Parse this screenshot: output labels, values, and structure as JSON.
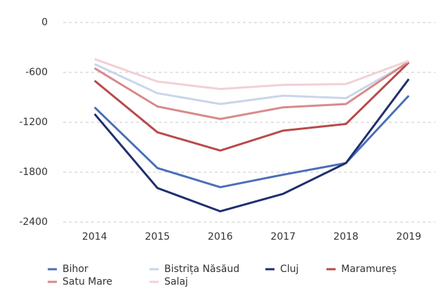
{
  "chart_data": {
    "type": "line",
    "categories": [
      "2014",
      "2015",
      "2016",
      "2017",
      "2018",
      "2019"
    ],
    "series": [
      {
        "name": "Bihor",
        "color": "#4a6fb8",
        "values": [
          -1020,
          -1750,
          -1980,
          -1830,
          -1690,
          -880
        ]
      },
      {
        "name": "Bistrița Năsăud",
        "color": "#c9d6ea",
        "values": [
          -500,
          -850,
          -980,
          -880,
          -910,
          -480
        ]
      },
      {
        "name": "Cluj",
        "color": "#1f2f6e",
        "values": [
          -1100,
          -1990,
          -2270,
          -2060,
          -1690,
          -680
        ]
      },
      {
        "name": "Maramureș",
        "color": "#b84a4a",
        "values": [
          -700,
          -1320,
          -1540,
          -1300,
          -1220,
          -480
        ]
      },
      {
        "name": "Satu Mare",
        "color": "#d88a8a",
        "values": [
          -550,
          -1010,
          -1160,
          -1020,
          -980,
          -470
        ]
      },
      {
        "name": "Salaj",
        "color": "#f2d0d4",
        "values": [
          -440,
          -710,
          -800,
          -750,
          -740,
          -460
        ]
      }
    ],
    "ylim": [
      -2400,
      0
    ],
    "yticks": [
      0,
      -600,
      -1200,
      -1800,
      -2400
    ],
    "grid": true
  }
}
